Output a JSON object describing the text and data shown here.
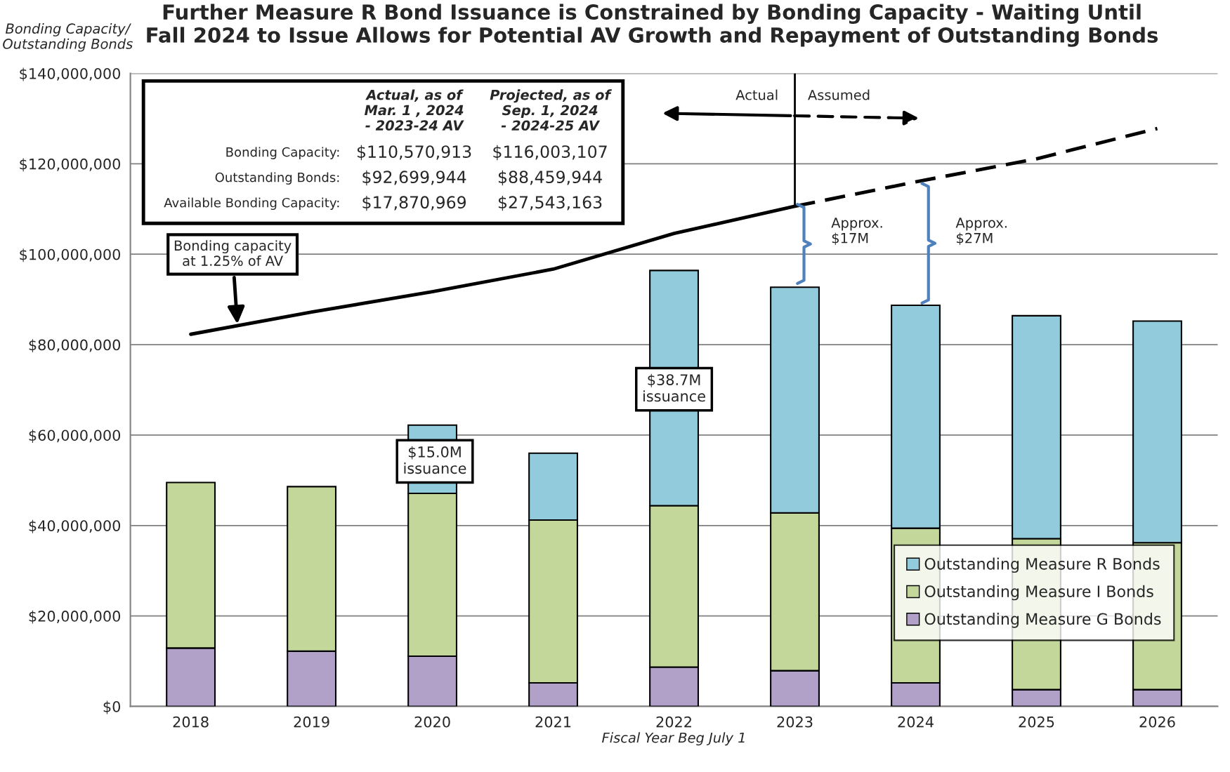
{
  "chart_data": {
    "type": "bar",
    "title": "Further Measure R Bond Issuance is Constrained by Bonding Capacity - Waiting Until\nFall 2024 to Issue Allows for Potential AV Growth and Repayment of Outstanding Bonds",
    "xlabel": "Fiscal Year Beg July 1",
    "ylabel": "Bonding Capacity/\nOutstanding Bonds",
    "categories": [
      "2018",
      "2019",
      "2020",
      "2021",
      "2022",
      "2023",
      "2024",
      "2025",
      "2026"
    ],
    "stacked": true,
    "series": [
      {
        "name": "Outstanding Measure G Bonds",
        "color": "#b1a0c7",
        "values": [
          12900000,
          12200000,
          11100000,
          5200000,
          8700000,
          7900000,
          5200000,
          3700000,
          3700000
        ]
      },
      {
        "name": "Outstanding Measure I Bonds",
        "color": "#c4d79b",
        "values": [
          36600000,
          36400000,
          36000000,
          36000000,
          35700000,
          34900000,
          34200000,
          33400000,
          32500000
        ]
      },
      {
        "name": "Outstanding Measure R Bonds",
        "color": "#92cbdc",
        "values": [
          0,
          0,
          15100000,
          14800000,
          52000000,
          49900000,
          49300000,
          49300000,
          49000000
        ]
      },
      {
        "type": "line",
        "color": "#000000",
        "line_style": "solid",
        "values": [
          82300000,
          87200000,
          91700000,
          96700000,
          104600000,
          110600000,
          null,
          null,
          null
        ]
      },
      {
        "type": "line",
        "color": "#000000",
        "line_style": "dashed",
        "values": [
          null,
          null,
          null,
          null,
          null,
          110600000,
          116000000,
          121100000,
          127800000
        ]
      }
    ],
    "ylim": [
      0,
      140000000
    ],
    "yticks": [
      {
        "value": 0,
        "label": "$0"
      },
      {
        "value": 20000000,
        "label": "$20,000,000"
      },
      {
        "value": 40000000,
        "label": "$40,000,000"
      },
      {
        "value": 60000000,
        "label": "$60,000,000"
      },
      {
        "value": 80000000,
        "label": "$80,000,000"
      },
      {
        "value": 100000000,
        "label": "$100,000,000"
      },
      {
        "value": 120000000,
        "label": "$120,000,000"
      },
      {
        "value": 140000000,
        "label": "$140,000,000"
      }
    ],
    "grid": "y",
    "legend": "bottom right",
    "ref_lines": [
      {
        "axis": "x",
        "value": "2023",
        "color": "#000000"
      }
    ],
    "annotations": [
      "Actual, as of\nMar. 1 , 2024\n- 2023-24 AV",
      "Projected, as of\nSep. 1, 2024\n- 2024-25 AV",
      "Bonding Capacity:",
      "$110,570,913",
      "$116,003,107",
      "Outstanding Bonds:",
      "$92,699,944",
      "$88,459,944",
      "Available Bonding Capacity:",
      "$17,870,969",
      "$27,543,163",
      "Bonding capacity\nat 1.25% of AV",
      "$15.0M\nissuance",
      "$38.7M\nissuance",
      "Actual",
      "Assumed",
      "Approx.\n$17M",
      "Approx.\n$27M"
    ]
  }
}
